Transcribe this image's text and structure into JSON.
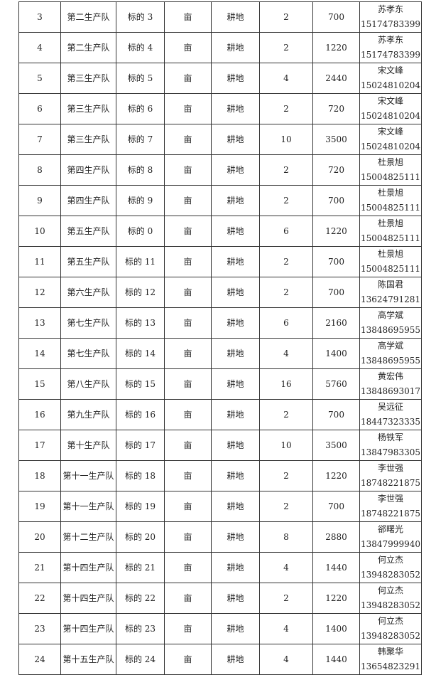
{
  "rows": [
    {
      "no": "3",
      "team": "第二生产队",
      "lot": "标的 3",
      "unit": "亩",
      "type": "耕地",
      "area": "2",
      "price": "700",
      "name": "苏孝东",
      "phone": "15174783399"
    },
    {
      "no": "4",
      "team": "第二生产队",
      "lot": "标的 4",
      "unit": "亩",
      "type": "耕地",
      "area": "2",
      "price": "1220",
      "name": "苏孝东",
      "phone": "15174783399"
    },
    {
      "no": "5",
      "team": "第三生产队",
      "lot": "标的 5",
      "unit": "亩",
      "type": "耕地",
      "area": "4",
      "price": "2440",
      "name": "宋文峰",
      "phone": "15024810204"
    },
    {
      "no": "6",
      "team": "第三生产队",
      "lot": "标的 6",
      "unit": "亩",
      "type": "耕地",
      "area": "2",
      "price": "720",
      "name": "宋文峰",
      "phone": "15024810204"
    },
    {
      "no": "7",
      "team": "第三生产队",
      "lot": "标的 7",
      "unit": "亩",
      "type": "耕地",
      "area": "10",
      "price": "3500",
      "name": "宋文峰",
      "phone": "15024810204"
    },
    {
      "no": "8",
      "team": "第四生产队",
      "lot": "标的 8",
      "unit": "亩",
      "type": "耕地",
      "area": "2",
      "price": "720",
      "name": "杜景旭",
      "phone": "15004825111"
    },
    {
      "no": "9",
      "team": "第四生产队",
      "lot": "标的 9",
      "unit": "亩",
      "type": "耕地",
      "area": "2",
      "price": "700",
      "name": "杜景旭",
      "phone": "15004825111"
    },
    {
      "no": "10",
      "team": "第五生产队",
      "lot": "标的 0",
      "unit": "亩",
      "type": "耕地",
      "area": "6",
      "price": "1220",
      "name": "杜景旭",
      "phone": "15004825111"
    },
    {
      "no": "11",
      "team": "第五生产队",
      "lot": "标的 11",
      "unit": "亩",
      "type": "耕地",
      "area": "2",
      "price": "700",
      "name": "杜景旭",
      "phone": "15004825111"
    },
    {
      "no": "12",
      "team": "第六生产队",
      "lot": "标的 12",
      "unit": "亩",
      "type": "耕地",
      "area": "2",
      "price": "700",
      "name": "陈国君",
      "phone": "13624791281"
    },
    {
      "no": "13",
      "team": "第七生产队",
      "lot": "标的 13",
      "unit": "亩",
      "type": "耕地",
      "area": "6",
      "price": "2160",
      "name": "高学斌",
      "phone": "13848695955"
    },
    {
      "no": "14",
      "team": "第七生产队",
      "lot": "标的 14",
      "unit": "亩",
      "type": "耕地",
      "area": "4",
      "price": "1400",
      "name": "高学斌",
      "phone": "13848695955"
    },
    {
      "no": "15",
      "team": "第八生产队",
      "lot": "标的 15",
      "unit": "亩",
      "type": "耕地",
      "area": "16",
      "price": "5760",
      "name": "黄宏伟",
      "phone": "13848693017"
    },
    {
      "no": "16",
      "team": "第九生产队",
      "lot": "标的 16",
      "unit": "亩",
      "type": "耕地",
      "area": "2",
      "price": "700",
      "name": "吴远征",
      "phone": "18447323335"
    },
    {
      "no": "17",
      "team": "第十生产队",
      "lot": "标的 17",
      "unit": "亩",
      "type": "耕地",
      "area": "10",
      "price": "3500",
      "name": "杨铁军",
      "phone": "13847983305"
    },
    {
      "no": "18",
      "team": "第十一生产队",
      "lot": "标的 18",
      "unit": "亩",
      "type": "耕地",
      "area": "2",
      "price": "1220",
      "name": "李世强",
      "phone": "18748221875"
    },
    {
      "no": "19",
      "team": "第十一生产队",
      "lot": "标的 19",
      "unit": "亩",
      "type": "耕地",
      "area": "2",
      "price": "700",
      "name": "李世强",
      "phone": "18748221875"
    },
    {
      "no": "20",
      "team": "第十二生产队",
      "lot": "标的 20",
      "unit": "亩",
      "type": "耕地",
      "area": "8",
      "price": "2880",
      "name": "郤曙光",
      "phone": "13847999940"
    },
    {
      "no": "21",
      "team": "第十四生产队",
      "lot": "标的 21",
      "unit": "亩",
      "type": "耕地",
      "area": "4",
      "price": "1440",
      "name": "何立杰",
      "phone": "13948283052"
    },
    {
      "no": "22",
      "team": "第十四生产队",
      "lot": "标的 22",
      "unit": "亩",
      "type": "耕地",
      "area": "2",
      "price": "1220",
      "name": "何立杰",
      "phone": "13948283052"
    },
    {
      "no": "23",
      "team": "第十四生产队",
      "lot": "标的 23",
      "unit": "亩",
      "type": "耕地",
      "area": "4",
      "price": "1400",
      "name": "何立杰",
      "phone": "13948283052"
    },
    {
      "no": "24",
      "team": "第十五生产队",
      "lot": "标的 24",
      "unit": "亩",
      "type": "耕地",
      "area": "4",
      "price": "1440",
      "name": "韩聚华",
      "phone": "13654823291"
    }
  ]
}
